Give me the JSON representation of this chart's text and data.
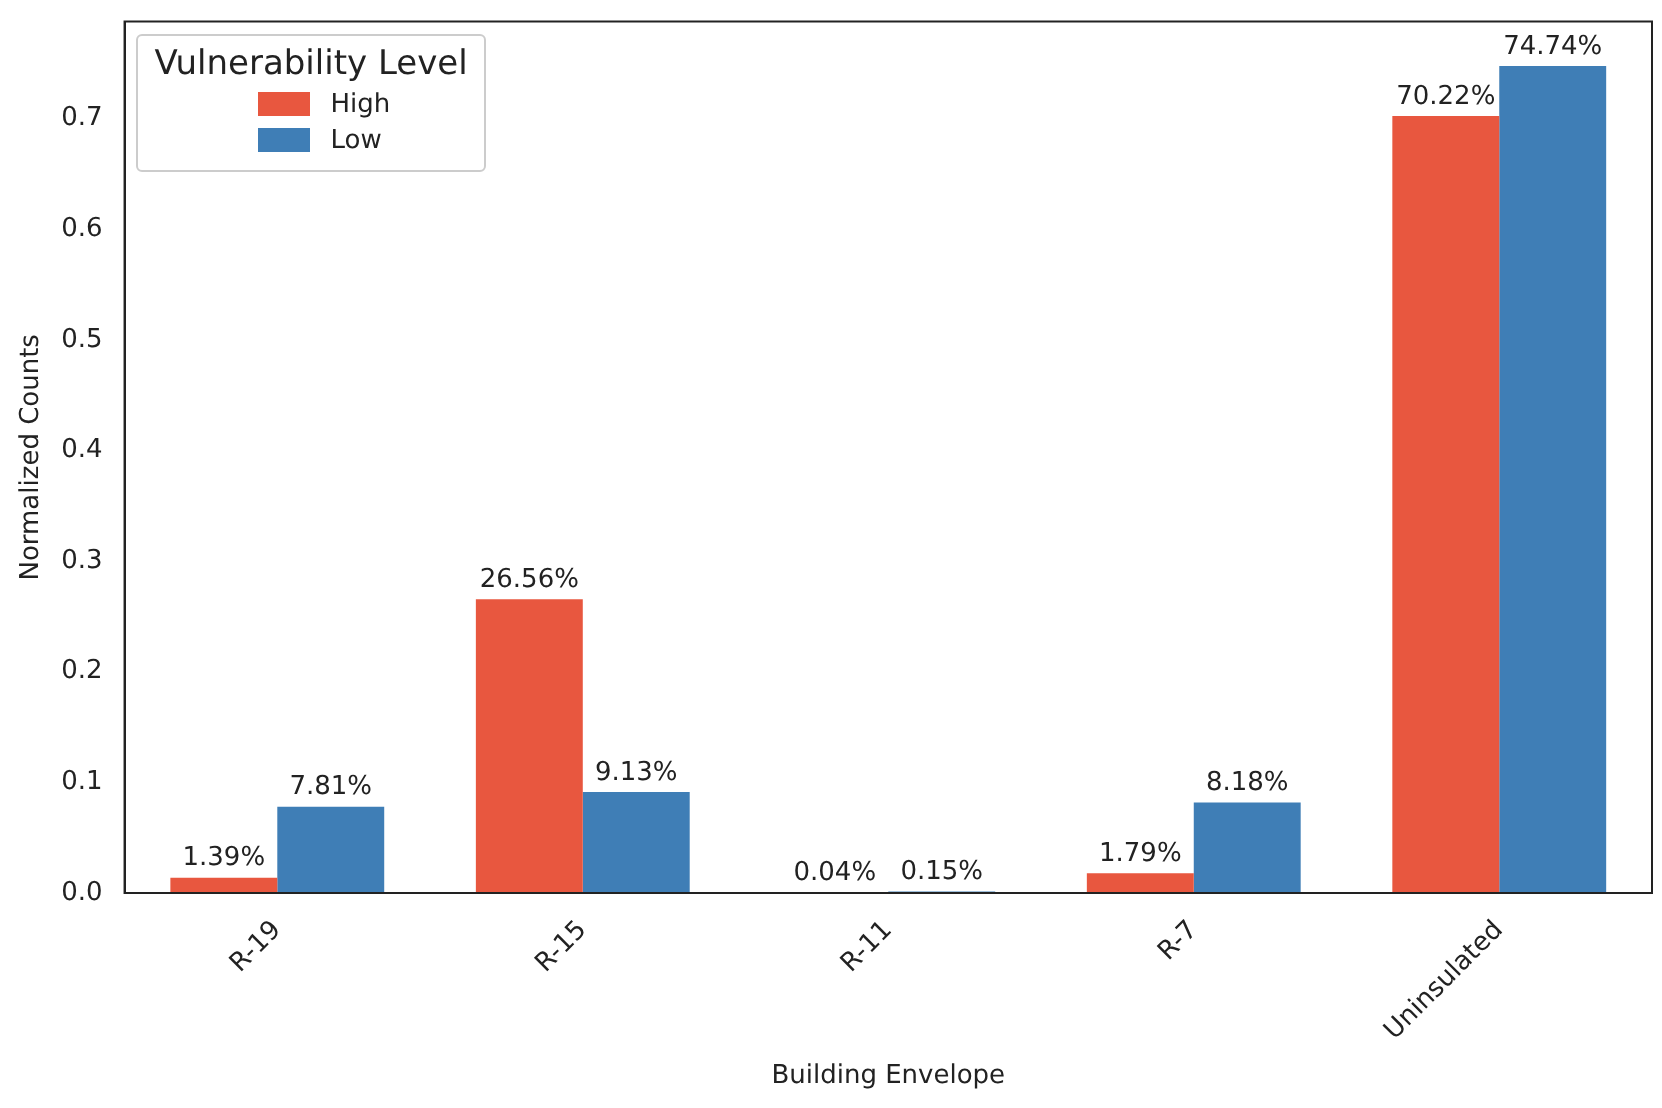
{
  "chart_data": {
    "type": "bar",
    "xlabel": "Building Envelope",
    "ylabel": "Normalized Counts",
    "legend_title": "Vulnerability Level",
    "categories": [
      "R-19",
      "R-15",
      "R-11",
      "R-7",
      "Uninsulated"
    ],
    "series": [
      {
        "name": "High",
        "color": "#e8573f",
        "values": [
          0.0139,
          0.2656,
          0.0004,
          0.0179,
          0.7022
        ],
        "value_labels": [
          "1.39%",
          "26.56%",
          "0.04%",
          "1.79%",
          "70.22%"
        ]
      },
      {
        "name": "Low",
        "color": "#3f7eb6",
        "values": [
          0.0781,
          0.0913,
          0.0015,
          0.0818,
          0.7474
        ],
        "value_labels": [
          "7.81%",
          "9.13%",
          "0.15%",
          "8.18%",
          "74.74%"
        ]
      }
    ],
    "ylim": [
      0,
      0.7875
    ],
    "yticks": [
      {
        "value": 0,
        "label": "0.0"
      },
      {
        "value": 0.1,
        "label": "0.1"
      },
      {
        "value": 0.2,
        "label": "0.2"
      },
      {
        "value": 0.3,
        "label": "0.3"
      },
      {
        "value": 0.4,
        "label": "0.4"
      },
      {
        "value": 0.5,
        "label": "0.5"
      },
      {
        "value": 0.6,
        "label": "0.6"
      },
      {
        "value": 0.7,
        "label": "0.7"
      }
    ],
    "grid": false,
    "legend": "top left"
  }
}
